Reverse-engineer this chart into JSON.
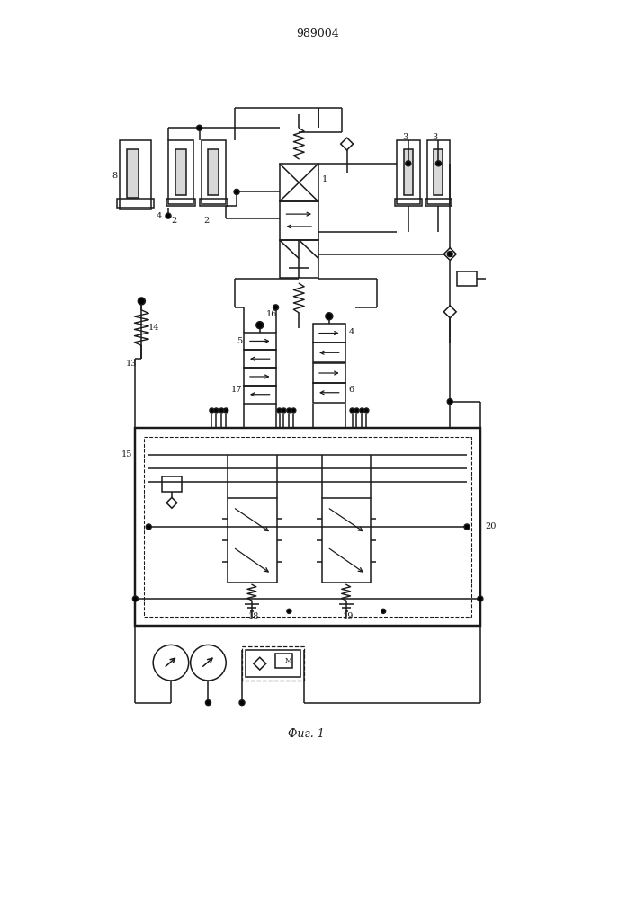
{
  "title": "989004",
  "fig_label": "Фиг. 1",
  "bg_color": "#ffffff",
  "line_color": "#1a1a1a",
  "lw": 1.1
}
